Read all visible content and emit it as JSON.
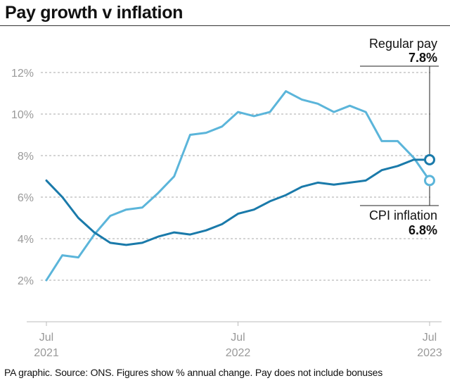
{
  "title": "Pay growth v inflation",
  "footnote": "PA graphic. Source: ONS. Figures show % annual change. Pay does not include bonuses",
  "colors": {
    "regular_pay": "#1a7aaa",
    "cpi_inflation": "#5bb5da",
    "grid": "#aaaaaa",
    "axis_text": "#999999"
  },
  "chart_data": {
    "type": "line",
    "title": "Pay growth v inflation",
    "xlabel": "",
    "ylabel": "",
    "ylim": [
      0,
      13
    ],
    "grid": true,
    "y_ticks": [
      {
        "value": 2,
        "label": "2%"
      },
      {
        "value": 4,
        "label": "4%"
      },
      {
        "value": 6,
        "label": "6%"
      },
      {
        "value": 8,
        "label": "8%"
      },
      {
        "value": 10,
        "label": "10%"
      },
      {
        "value": 12,
        "label": "12%"
      }
    ],
    "x_ticks": [
      {
        "month": "Jul",
        "year": "2021",
        "index": 0
      },
      {
        "month": "Jul",
        "year": "2022",
        "index": 12
      },
      {
        "month": "Jul",
        "year": "2023",
        "index": 24
      }
    ],
    "x_start": "Jul 2021",
    "x_end": "Jul 2023",
    "series": [
      {
        "name": "Regular pay",
        "key": "regular_pay",
        "end_label": "7.8%",
        "values": [
          6.8,
          6.0,
          5.0,
          4.3,
          3.8,
          3.7,
          3.8,
          4.1,
          4.3,
          4.2,
          4.4,
          4.7,
          5.2,
          5.4,
          5.8,
          6.1,
          6.5,
          6.7,
          6.6,
          6.7,
          6.8,
          7.3,
          7.5,
          7.8,
          7.8
        ]
      },
      {
        "name": "CPI inflation",
        "key": "cpi_inflation",
        "end_label": "6.8%",
        "values": [
          2.0,
          3.2,
          3.1,
          4.2,
          5.1,
          5.4,
          5.5,
          6.2,
          7.0,
          9.0,
          9.1,
          9.4,
          10.1,
          9.9,
          10.1,
          11.1,
          10.7,
          10.5,
          10.1,
          10.4,
          10.1,
          8.7,
          8.7,
          7.9,
          6.8
        ]
      }
    ]
  }
}
